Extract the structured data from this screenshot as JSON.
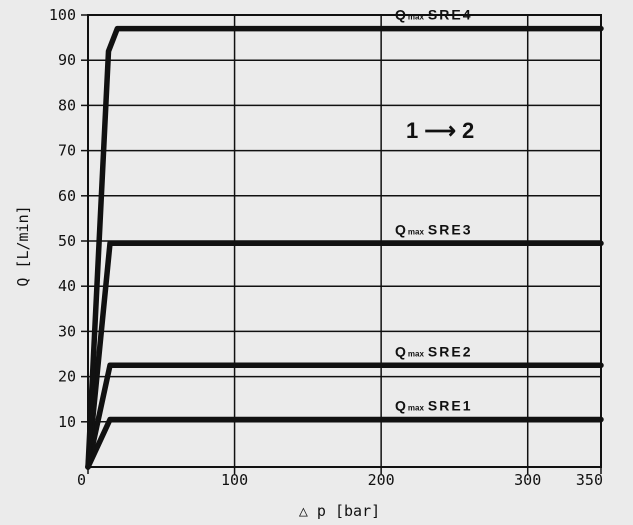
{
  "chart_data": {
    "type": "line",
    "title": "",
    "xlabel": "△ p  [bar]",
    "ylabel": "Q [L/min]",
    "xlim": [
      0,
      350
    ],
    "ylim": [
      0,
      100
    ],
    "x_ticks": [
      0,
      100,
      200,
      300,
      350
    ],
    "y_ticks": [
      10,
      20,
      30,
      40,
      50,
      60,
      70,
      80,
      90,
      100
    ],
    "grid": true,
    "annotation": "1 ⟶ 2",
    "series": [
      {
        "name": "Qmax SRE1",
        "label_main": "Q",
        "label_sub": "max",
        "label_code": "SRE1",
        "x": [
          0,
          15,
          25,
          350
        ],
        "y": [
          0,
          10.5,
          10.5,
          10.5
        ]
      },
      {
        "name": "Qmax SRE2",
        "label_main": "Q",
        "label_sub": "max",
        "label_code": "SRE2",
        "x": [
          0,
          15,
          25,
          350
        ],
        "y": [
          0,
          22.5,
          22.5,
          22.5
        ]
      },
      {
        "name": "Qmax SRE3",
        "label_main": "Q",
        "label_sub": "max",
        "label_code": "SRE3",
        "x": [
          0,
          15,
          25,
          350
        ],
        "y": [
          0,
          49.5,
          49.5,
          49.5
        ]
      },
      {
        "name": "Qmax SRE4",
        "label_main": "Q",
        "label_sub": "max",
        "label_code": "SRE4",
        "x": [
          0,
          14,
          20,
          350
        ],
        "y": [
          0,
          92,
          97,
          97
        ]
      }
    ]
  }
}
